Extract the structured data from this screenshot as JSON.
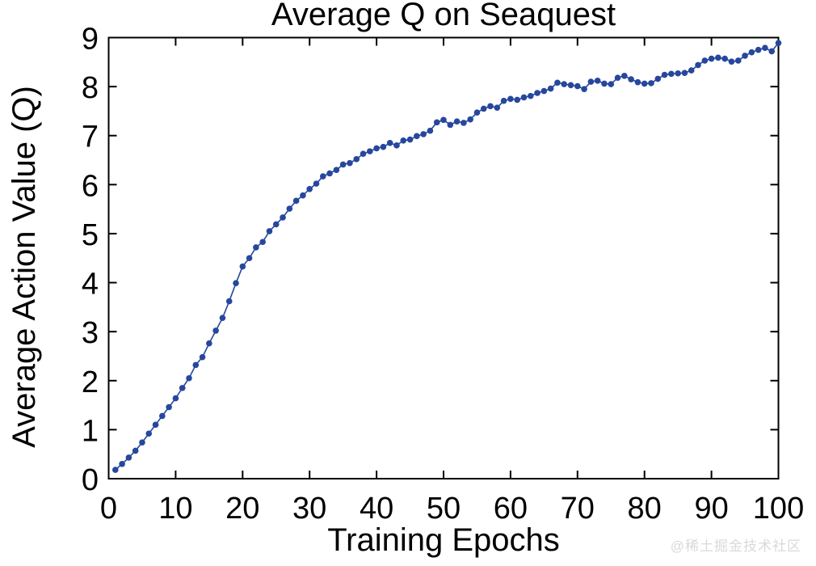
{
  "watermark": {
    "text": "@稀土掘金技术社区",
    "color": "#d9d9d9"
  },
  "chart_data": {
    "type": "line",
    "title": "Average Q on Seaquest",
    "xlabel": "Training Epochs",
    "ylabel": "Average Action Value (Q)",
    "xlim": [
      0,
      100
    ],
    "ylim": [
      0,
      9
    ],
    "xticks": [
      0,
      10,
      20,
      30,
      40,
      50,
      60,
      70,
      80,
      90,
      100
    ],
    "yticks": [
      0,
      1,
      2,
      3,
      4,
      5,
      6,
      7,
      8,
      9
    ],
    "grid": false,
    "legend": "none",
    "marker": "filled-circle",
    "line_color": "#26479D",
    "axis_color": "#000000",
    "series": [
      {
        "name": "Average Q",
        "x": [
          1,
          2,
          3,
          4,
          5,
          6,
          7,
          8,
          9,
          10,
          11,
          12,
          13,
          14,
          15,
          16,
          17,
          18,
          19,
          20,
          21,
          22,
          23,
          24,
          25,
          26,
          27,
          28,
          29,
          30,
          31,
          32,
          33,
          34,
          35,
          36,
          37,
          38,
          39,
          40,
          41,
          42,
          43,
          44,
          45,
          46,
          47,
          48,
          49,
          50,
          51,
          52,
          53,
          54,
          55,
          56,
          57,
          58,
          59,
          60,
          61,
          62,
          63,
          64,
          65,
          66,
          67,
          68,
          69,
          70,
          71,
          72,
          73,
          74,
          75,
          76,
          77,
          78,
          79,
          80,
          81,
          82,
          83,
          84,
          85,
          86,
          87,
          88,
          89,
          90,
          91,
          92,
          93,
          94,
          95,
          96,
          97,
          98,
          99,
          100
        ],
        "y": [
          0.18,
          0.3,
          0.43,
          0.57,
          0.74,
          0.92,
          1.1,
          1.28,
          1.46,
          1.64,
          1.85,
          2.05,
          2.32,
          2.48,
          2.76,
          3.02,
          3.28,
          3.62,
          3.99,
          4.33,
          4.5,
          4.72,
          4.83,
          5.05,
          5.19,
          5.33,
          5.51,
          5.67,
          5.78,
          5.91,
          6.02,
          6.17,
          6.23,
          6.3,
          6.41,
          6.44,
          6.52,
          6.63,
          6.68,
          6.74,
          6.77,
          6.85,
          6.8,
          6.9,
          6.92,
          6.99,
          7.03,
          7.1,
          7.27,
          7.32,
          7.22,
          7.29,
          7.26,
          7.33,
          7.47,
          7.55,
          7.6,
          7.57,
          7.71,
          7.75,
          7.73,
          7.78,
          7.81,
          7.87,
          7.91,
          7.96,
          8.08,
          8.05,
          8.03,
          8.01,
          7.95,
          8.1,
          8.12,
          8.06,
          8.05,
          8.18,
          8.22,
          8.15,
          8.09,
          8.06,
          8.07,
          8.16,
          8.24,
          8.26,
          8.27,
          8.28,
          8.33,
          8.44,
          8.53,
          8.57,
          8.59,
          8.57,
          8.51,
          8.53,
          8.63,
          8.7,
          8.75,
          8.79,
          8.72,
          8.89
        ]
      }
    ]
  }
}
